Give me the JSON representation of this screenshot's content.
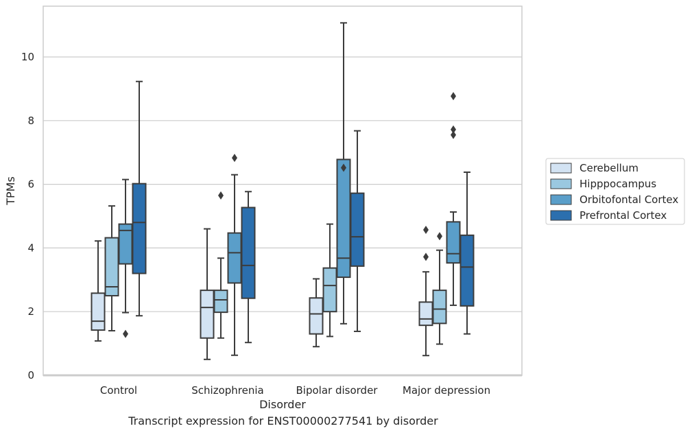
{
  "caption": "Transcript expression for ENST00000277541 by disorder",
  "chart_data": {
    "type": "box",
    "title": "",
    "xlabel": "Disorder",
    "ylabel": "TPMs",
    "ylim": [
      0,
      11.6
    ],
    "yticks": [
      0,
      2,
      4,
      6,
      8,
      10
    ],
    "grid": "horizontal",
    "legend_position": "right",
    "categories": [
      "Control",
      "Schizophrenia",
      "Bipolar disorder",
      "Major depression"
    ],
    "series": [
      {
        "name": "Cerebellum",
        "color": "#d3e3f3",
        "boxes": [
          {
            "whislo": 1.08,
            "q1": 1.42,
            "med": 1.7,
            "q3": 2.58,
            "whishi": 4.22,
            "fliers": []
          },
          {
            "whislo": 0.5,
            "q1": 1.17,
            "med": 2.13,
            "q3": 2.67,
            "whishi": 4.6,
            "fliers": []
          },
          {
            "whislo": 0.9,
            "q1": 1.3,
            "med": 1.93,
            "q3": 2.43,
            "whishi": 3.03,
            "fliers": []
          },
          {
            "whislo": 0.62,
            "q1": 1.57,
            "med": 1.77,
            "q3": 2.3,
            "whishi": 3.25,
            "fliers": [
              3.72,
              4.57
            ]
          }
        ]
      },
      {
        "name": "Hipppocampus",
        "color": "#9ac8e0",
        "boxes": [
          {
            "whislo": 1.4,
            "q1": 2.5,
            "med": 2.78,
            "q3": 4.32,
            "whishi": 5.32,
            "fliers": []
          },
          {
            "whislo": 1.17,
            "q1": 1.98,
            "med": 2.37,
            "q3": 2.67,
            "whishi": 3.68,
            "fliers": [
              5.65
            ]
          },
          {
            "whislo": 1.22,
            "q1": 2.0,
            "med": 2.82,
            "q3": 3.37,
            "whishi": 4.75,
            "fliers": []
          },
          {
            "whislo": 0.98,
            "q1": 1.63,
            "med": 2.08,
            "q3": 2.67,
            "whishi": 3.93,
            "fliers": [
              4.37
            ]
          }
        ]
      },
      {
        "name": "Orbitofontal Cortex",
        "color": "#5a9ec9",
        "boxes": [
          {
            "whislo": 1.97,
            "q1": 3.5,
            "med": 4.55,
            "q3": 4.75,
            "whishi": 6.15,
            "fliers": [
              1.3
            ]
          },
          {
            "whislo": 0.63,
            "q1": 2.9,
            "med": 3.85,
            "q3": 4.47,
            "whishi": 6.3,
            "fliers": [
              6.83
            ]
          },
          {
            "whislo": 1.62,
            "q1": 3.08,
            "med": 3.68,
            "q3": 6.78,
            "whishi": 11.07,
            "fliers": [
              6.52
            ]
          },
          {
            "whislo": 2.2,
            "q1": 3.53,
            "med": 3.82,
            "q3": 4.82,
            "whishi": 5.13,
            "fliers": [
              7.55,
              7.72,
              8.77
            ]
          }
        ]
      },
      {
        "name": "Prefrontal Cortex",
        "color": "#2b6fae",
        "boxes": [
          {
            "whislo": 1.87,
            "q1": 3.2,
            "med": 4.8,
            "q3": 6.02,
            "whishi": 9.23,
            "fliers": []
          },
          {
            "whislo": 1.03,
            "q1": 2.42,
            "med": 3.45,
            "q3": 5.27,
            "whishi": 5.77,
            "fliers": []
          },
          {
            "whislo": 1.38,
            "q1": 3.43,
            "med": 4.35,
            "q3": 5.72,
            "whishi": 7.68,
            "fliers": []
          },
          {
            "whislo": 1.3,
            "q1": 2.18,
            "med": 3.4,
            "q3": 4.4,
            "whishi": 6.38,
            "fliers": []
          }
        ]
      }
    ]
  }
}
